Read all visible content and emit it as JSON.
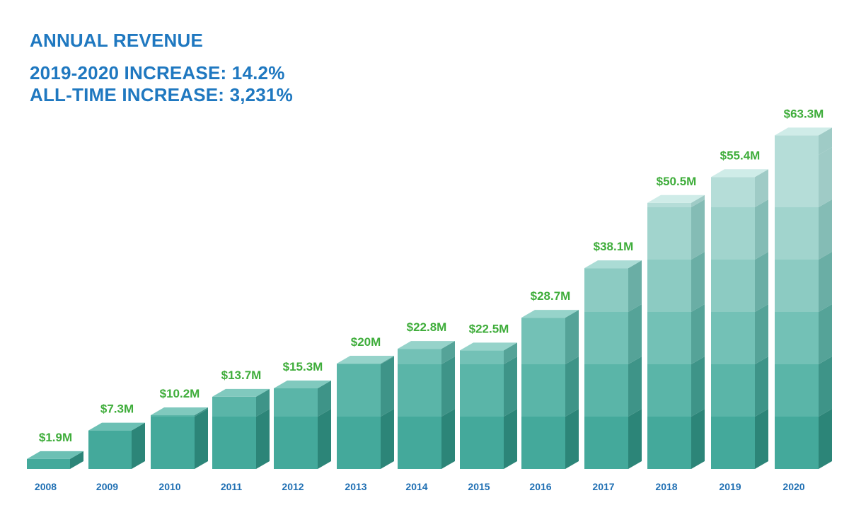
{
  "chart_data": {
    "type": "bar",
    "title": "ANNUAL REVENUE",
    "subtitles": [
      "2019-2020 INCREASE: 14.2%",
      "ALL-TIME INCREASE: 3,231%"
    ],
    "categories": [
      "2008",
      "2009",
      "2010",
      "2011",
      "2012",
      "2013",
      "2014",
      "2015",
      "2016",
      "2017",
      "2018",
      "2019",
      "2020"
    ],
    "values": [
      1.9,
      7.3,
      10.2,
      13.7,
      15.3,
      20,
      22.8,
      22.5,
      28.7,
      38.1,
      50.5,
      55.4,
      63.3
    ],
    "value_labels": [
      "$1.9M",
      "$7.3M",
      "$10.2M",
      "$13.7M",
      "$15.3M",
      "$20M",
      "$22.8M",
      "$22.5M",
      "$28.7M",
      "$38.1M",
      "$50.5M",
      "$55.4M",
      "$63.3M"
    ],
    "xlabel": "",
    "ylabel": "",
    "grid": false,
    "legend": "none"
  },
  "colors": {
    "heading": "#1f78c0",
    "value_label": "#3fad3b",
    "year_label": "#1f6fb3",
    "segment_fronts": [
      "#44a99b",
      "#5ab5a8",
      "#73c1b6",
      "#8ccbc2",
      "#a1d4cd",
      "#b5ddd8"
    ],
    "segment_sides": [
      "#2c8578",
      "#3e9488",
      "#55a398",
      "#6aaea5",
      "#84bcb5",
      "#9fcbc6"
    ],
    "segment_tops": [
      "#6cc0b4",
      "#80c9be",
      "#96d3ca",
      "#abdcd5",
      "#bee5df",
      "#cfece8"
    ]
  }
}
